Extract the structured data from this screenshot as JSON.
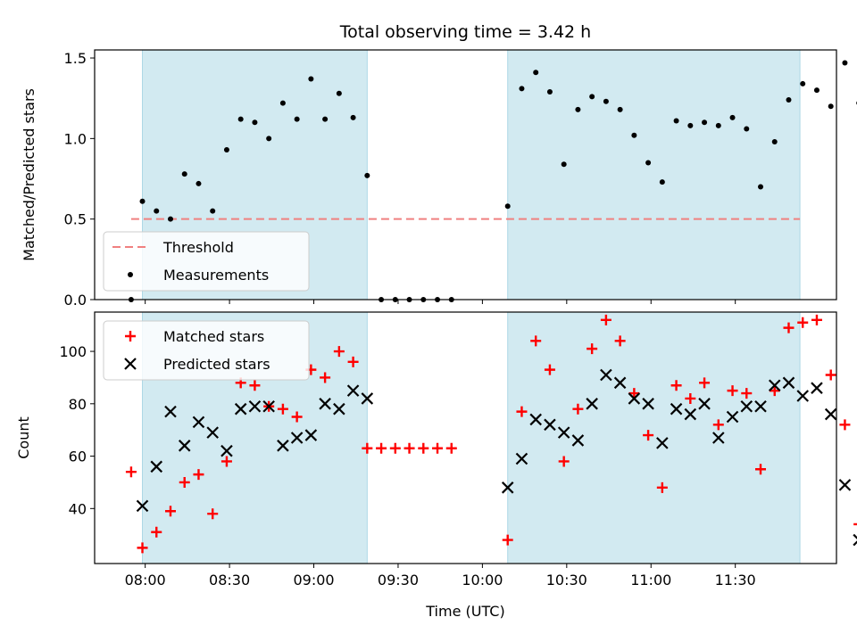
{
  "chart_data": {
    "type": "scatter",
    "title": "Total observing time = 3.42 h",
    "xlabel": "Time (UTC)",
    "x_unit": "minutes since midnight UTC",
    "xlim": [
      462,
      726
    ],
    "xticks": [
      480,
      510,
      540,
      570,
      600,
      630,
      660,
      690
    ],
    "xticklabels": [
      "08:00",
      "08:30",
      "09:00",
      "09:30",
      "10:00",
      "10:30",
      "11:00",
      "11:30"
    ],
    "shaded_intervals": [
      [
        479,
        559
      ],
      [
        609,
        713
      ]
    ],
    "shade_color": "#add8e6",
    "panels": [
      {
        "ylabel": "Matched/Predicted stars",
        "ylim": [
          0,
          1.55
        ],
        "yticks": [
          0,
          0.5,
          1.0,
          1.5
        ],
        "yticklabels": [
          "0.0",
          "0.5",
          "1.0",
          "1.5"
        ],
        "threshold": {
          "name": "Threshold",
          "value": 0.5,
          "x_range": [
            475,
            713
          ],
          "color": "#f08080"
        },
        "legend_location": "lower left",
        "series": [
          {
            "name": "Measurements",
            "marker": "dot",
            "color": "#000000",
            "points": [
              [
                475,
                0
              ],
              [
                479,
                0.61
              ],
              [
                484,
                0.55
              ],
              [
                489,
                0.5
              ],
              [
                494,
                0.78
              ],
              [
                499,
                0.72
              ],
              [
                504,
                0.55
              ],
              [
                509,
                0.93
              ],
              [
                514,
                1.12
              ],
              [
                519,
                1.1
              ],
              [
                524,
                1.0
              ],
              [
                529,
                1.22
              ],
              [
                534,
                1.12
              ],
              [
                539,
                1.37
              ],
              [
                544,
                1.12
              ],
              [
                549,
                1.28
              ],
              [
                554,
                1.13
              ],
              [
                559,
                0.77
              ],
              [
                564,
                0
              ],
              [
                569,
                0
              ],
              [
                574,
                0
              ],
              [
                579,
                0
              ],
              [
                584,
                0
              ],
              [
                589,
                0
              ],
              [
                609,
                0.58
              ],
              [
                614,
                1.31
              ],
              [
                619,
                1.41
              ],
              [
                624,
                1.29
              ],
              [
                629,
                0.84
              ],
              [
                634,
                1.18
              ],
              [
                639,
                1.26
              ],
              [
                644,
                1.23
              ],
              [
                649,
                1.18
              ],
              [
                654,
                1.02
              ],
              [
                659,
                0.85
              ],
              [
                664,
                0.73
              ],
              [
                669,
                1.11
              ],
              [
                674,
                1.08
              ],
              [
                679,
                1.1
              ],
              [
                684,
                1.08
              ],
              [
                689,
                1.13
              ],
              [
                694,
                1.06
              ],
              [
                699,
                0.7
              ],
              [
                704,
                0.98
              ],
              [
                709,
                1.24
              ],
              [
                714,
                1.34
              ],
              [
                719,
                1.3
              ],
              [
                724,
                1.2
              ],
              [
                729,
                1.47
              ],
              [
                734,
                1.22
              ]
            ]
          }
        ]
      },
      {
        "ylabel": "Count",
        "ylim": [
          19,
          115
        ],
        "yticks": [
          40,
          60,
          80,
          100
        ],
        "yticklabels": [
          "40",
          "60",
          "80",
          "100"
        ],
        "legend_location": "upper left",
        "series": [
          {
            "name": "Matched stars",
            "marker": "plus",
            "color": "#ff0000",
            "points": [
              [
                475,
                54
              ],
              [
                479,
                25
              ],
              [
                484,
                31
              ],
              [
                489,
                39
              ],
              [
                494,
                50
              ],
              [
                499,
                53
              ],
              [
                504,
                38
              ],
              [
                509,
                58
              ],
              [
                514,
                88
              ],
              [
                519,
                87
              ],
              [
                524,
                79
              ],
              [
                529,
                78
              ],
              [
                534,
                75
              ],
              [
                539,
                93
              ],
              [
                544,
                90
              ],
              [
                549,
                100
              ],
              [
                554,
                96
              ],
              [
                559,
                63
              ],
              [
                564,
                63
              ],
              [
                569,
                63
              ],
              [
                574,
                63
              ],
              [
                579,
                63
              ],
              [
                584,
                63
              ],
              [
                589,
                63
              ],
              [
                609,
                28
              ],
              [
                614,
                77
              ],
              [
                619,
                104
              ],
              [
                624,
                93
              ],
              [
                629,
                58
              ],
              [
                634,
                78
              ],
              [
                639,
                101
              ],
              [
                644,
                112
              ],
              [
                649,
                104
              ],
              [
                654,
                84
              ],
              [
                659,
                68
              ],
              [
                664,
                48
              ],
              [
                669,
                87
              ],
              [
                674,
                82
              ],
              [
                679,
                88
              ],
              [
                684,
                72
              ],
              [
                689,
                85
              ],
              [
                694,
                84
              ],
              [
                699,
                55
              ],
              [
                704,
                85
              ],
              [
                709,
                109
              ],
              [
                714,
                111
              ],
              [
                719,
                112
              ],
              [
                724,
                91
              ],
              [
                729,
                72
              ],
              [
                734,
                34
              ]
            ]
          },
          {
            "name": "Predicted stars",
            "marker": "x",
            "color": "#000000",
            "points": [
              [
                479,
                41
              ],
              [
                484,
                56
              ],
              [
                489,
                77
              ],
              [
                494,
                64
              ],
              [
                499,
                73
              ],
              [
                504,
                69
              ],
              [
                509,
                62
              ],
              [
                514,
                78
              ],
              [
                519,
                79
              ],
              [
                524,
                79
              ],
              [
                529,
                64
              ],
              [
                534,
                67
              ],
              [
                539,
                68
              ],
              [
                544,
                80
              ],
              [
                549,
                78
              ],
              [
                554,
                85
              ],
              [
                559,
                82
              ],
              [
                609,
                48
              ],
              [
                614,
                59
              ],
              [
                619,
                74
              ],
              [
                624,
                72
              ],
              [
                629,
                69
              ],
              [
                634,
                66
              ],
              [
                639,
                80
              ],
              [
                644,
                91
              ],
              [
                649,
                88
              ],
              [
                654,
                82
              ],
              [
                659,
                80
              ],
              [
                664,
                65
              ],
              [
                669,
                78
              ],
              [
                674,
                76
              ],
              [
                679,
                80
              ],
              [
                684,
                67
              ],
              [
                689,
                75
              ],
              [
                694,
                79
              ],
              [
                699,
                79
              ],
              [
                704,
                87
              ],
              [
                709,
                88
              ],
              [
                714,
                83
              ],
              [
                719,
                86
              ],
              [
                724,
                76
              ],
              [
                729,
                49
              ],
              [
                734,
                28
              ]
            ]
          }
        ]
      }
    ]
  }
}
